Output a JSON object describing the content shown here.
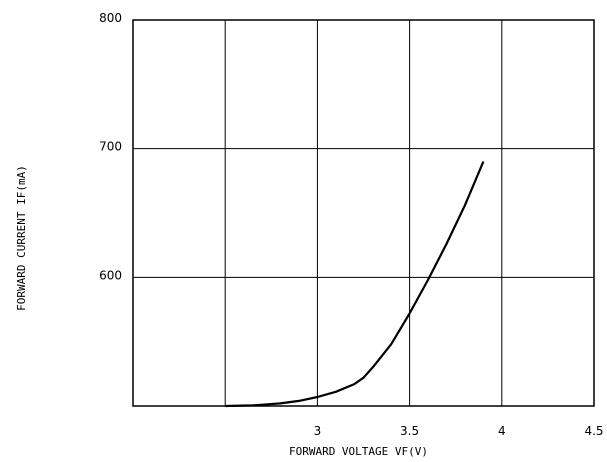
{
  "chart_data": {
    "type": "line",
    "xlabel": "FORWARD VOLTAGE VF(V)",
    "ylabel": "FORWARD CURRENT IF(mA)",
    "xlim": [
      2,
      4.5
    ],
    "ylim": [
      500,
      800
    ],
    "xticks": [
      2,
      2.5,
      3,
      3.5,
      4,
      4.5
    ],
    "xtick_labels": [
      "",
      "",
      "3",
      "3.5",
      "4",
      "4.5"
    ],
    "yticks": [
      500,
      600,
      700,
      800
    ],
    "ytick_labels": [
      "",
      "600",
      "700",
      "800"
    ],
    "grid": true,
    "series": [
      {
        "x": [
          2.5,
          2.65,
          2.8,
          2.9,
          3.0,
          3.1,
          3.2,
          3.25,
          3.3,
          3.4,
          3.5,
          3.6,
          3.7,
          3.8,
          3.9
        ],
        "y": [
          500,
          500.5,
          502,
          504,
          507,
          511,
          517,
          522,
          530,
          548,
          572,
          598,
          626,
          656,
          690
        ],
        "color": "#000000"
      }
    ]
  }
}
